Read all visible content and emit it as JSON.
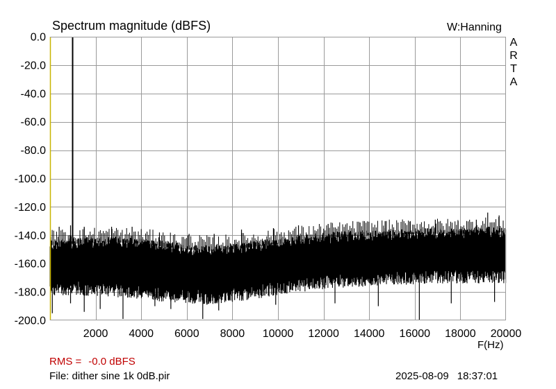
{
  "chart_data": {
    "type": "line",
    "title": "Spectrum magnitude (dBFS)",
    "xlabel": "F(Hz)",
    "ylabel": "",
    "xlim": [
      0,
      20000
    ],
    "ylim": [
      -200,
      0
    ],
    "x_ticks": [
      2000,
      4000,
      6000,
      8000,
      10000,
      12000,
      14000,
      16000,
      18000,
      20000
    ],
    "x_tick_labels": [
      "2000",
      "4000",
      "6000",
      "8000",
      "10000",
      "12000",
      "14000",
      "16000",
      "18000",
      "20000"
    ],
    "y_ticks": [
      0,
      -20,
      -40,
      -60,
      -80,
      -100,
      -120,
      -140,
      -160,
      -180,
      -200
    ],
    "y_tick_labels": [
      "0.0",
      "-20.0",
      "-40.0",
      "-60.0",
      "-80.0",
      "-100.0",
      "-120.0",
      "-140.0",
      "-160.0",
      "-180.0",
      "-200.0"
    ],
    "grid": true,
    "legend": "none",
    "series_color": "#000000",
    "series": [
      {
        "kind": "peak",
        "x": [
          1000
        ],
        "values": [
          0.0
        ]
      },
      {
        "kind": "noise-floor-upper",
        "x": [
          0,
          1000,
          2000,
          3000,
          4000,
          5000,
          6000,
          7000,
          8000,
          9000,
          10000,
          11000,
          12000,
          13000,
          14000,
          15000,
          16000,
          17000,
          18000,
          19000,
          20000
        ],
        "values": [
          -147,
          -146,
          -145,
          -145,
          -146,
          -148,
          -150,
          -151,
          -150,
          -148,
          -146,
          -144,
          -142,
          -141,
          -140,
          -140,
          -139,
          -139,
          -139,
          -138,
          -138
        ]
      },
      {
        "kind": "noise-floor-lower",
        "x": [
          0,
          1000,
          2000,
          3000,
          4000,
          5000,
          6000,
          7000,
          8000,
          9000,
          10000,
          11000,
          12000,
          13000,
          14000,
          15000,
          16000,
          17000,
          18000,
          19000,
          20000
        ],
        "values": [
          -178,
          -177,
          -178,
          -179,
          -180,
          -182,
          -183,
          -184,
          -182,
          -180,
          -177,
          -175,
          -173,
          -172,
          -171,
          -170,
          -170,
          -169,
          -169,
          -169,
          -169
        ]
      },
      {
        "kind": "spur-tops",
        "x": [
          400,
          900,
          1500,
          2700,
          3600,
          4800,
          6100,
          7200,
          8400,
          9800,
          10900,
          12200,
          13600,
          14700,
          15800,
          16900,
          17900,
          18700,
          19200,
          19700
        ],
        "values": [
          -134,
          -133,
          -134,
          -134,
          -134,
          -138,
          -139,
          -139,
          -136,
          -135,
          -133,
          -132,
          -131,
          -130,
          -130,
          -129,
          -130,
          -129,
          -124,
          -126
        ]
      },
      {
        "kind": "dip-bottoms",
        "x": [
          100,
          900,
          1500,
          2200,
          3200,
          4600,
          5300,
          6700,
          7400,
          9900,
          12500,
          14400,
          16200,
          17600,
          19500
        ],
        "values": [
          -195,
          -188,
          -194,
          -192,
          -199,
          -190,
          -192,
          -199,
          -193,
          -189,
          -188,
          -190,
          -200,
          -188,
          -187
        ]
      }
    ]
  },
  "header": {
    "window_function": "W:Hanning",
    "brand_letters": [
      "A",
      "R",
      "T",
      "A"
    ]
  },
  "footer": {
    "rms_label": "RMS =",
    "rms_value": "-0.0 dBFS",
    "file_text": "File: dither sine 1k 0dB.pir",
    "date": "2025-08-09",
    "time": "18:37:01"
  },
  "colors": {
    "left_axis": "#c8b400",
    "grid": "#9a9a9a",
    "rms_text": "#c00000"
  }
}
